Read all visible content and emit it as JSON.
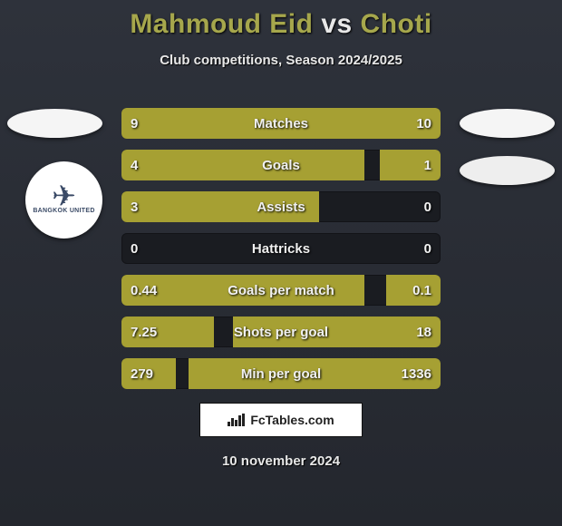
{
  "title": {
    "player1": "Mahmoud Eid",
    "vs": "vs",
    "player2": "Choti"
  },
  "subtitle": "Club competitions, Season 2024/2025",
  "footer_site": "FcTables.com",
  "date": "10 november 2024",
  "club_left_text": "BANGKOK UNITED",
  "colors": {
    "bar_left": "#a6a033",
    "bar_right": "#a6a033",
    "bar_bg": "#1a1c21",
    "val_text": "#f3f3f3"
  },
  "layout": {
    "bar_row_height": 34,
    "bar_row_gap": 12,
    "bar_radius": 6
  },
  "metrics": [
    {
      "label": "Matches",
      "left_val": "9",
      "right_val": "10",
      "left_pct": 47,
      "right_pct": 53
    },
    {
      "label": "Goals",
      "left_val": "4",
      "right_val": "1",
      "left_pct": 76,
      "right_pct": 19
    },
    {
      "label": "Assists",
      "left_val": "3",
      "right_val": "0",
      "left_pct": 62,
      "right_pct": 0
    },
    {
      "label": "Hattricks",
      "left_val": "0",
      "right_val": "0",
      "left_pct": 0,
      "right_pct": 0
    },
    {
      "label": "Goals per match",
      "left_val": "0.44",
      "right_val": "0.1",
      "left_pct": 76,
      "right_pct": 17
    },
    {
      "label": "Shots per goal",
      "left_val": "7.25",
      "right_val": "18",
      "left_pct": 29,
      "right_pct": 65
    },
    {
      "label": "Min per goal",
      "left_val": "279",
      "right_val": "1336",
      "left_pct": 17,
      "right_pct": 79
    }
  ]
}
